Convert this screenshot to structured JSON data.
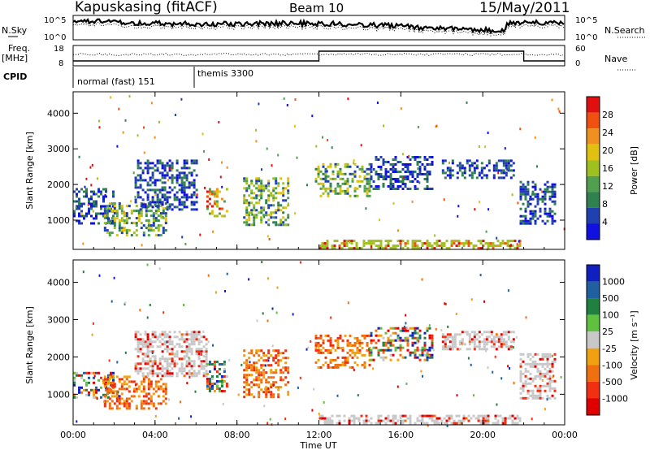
{
  "header": {
    "station": "Kapuskasing (fitACF)",
    "beam": "Beam 10",
    "date": "15/May/2011"
  },
  "noise_panel": {
    "left_label": "N.Sky",
    "right_label": "N.Search",
    "left_ticks": [
      "10^5",
      "10^0"
    ],
    "right_ticks": [
      "10^5",
      "10^0"
    ]
  },
  "freq_panel": {
    "left_label": "Freq.",
    "left_units": "[MHz]",
    "right_label": "Nave",
    "left_ticks": [
      "18",
      "8"
    ],
    "right_ticks": [
      "60",
      "0"
    ]
  },
  "cpid": {
    "label": "CPID",
    "modes": [
      {
        "name": "normal (fast) 151",
        "start_hour": 0
      },
      {
        "name": "themis 3300",
        "start_hour": 6
      }
    ]
  },
  "colors": {
    "power": [
      "#1010e0",
      "#2040b0",
      "#308050",
      "#50a050",
      "#a0c020",
      "#e0c010",
      "#f09020",
      "#f05010",
      "#e01010"
    ],
    "velocity": [
      "#1020c0",
      "#2060a0",
      "#208040",
      "#60c040",
      "#c8c8c8",
      "#f0a010",
      "#f07010",
      "#f03010",
      "#e00000"
    ]
  },
  "chart_data": [
    {
      "type": "heatmap",
      "title": "",
      "ylabel": "Slant Range [km]",
      "xlabel": "",
      "x_tick_labels": [
        "00:00",
        "04:00",
        "08:00",
        "12:00",
        "16:00",
        "20:00",
        "00:00"
      ],
      "y_tick_labels": [
        "1000",
        "2000",
        "3000",
        "4000"
      ],
      "xlim_hours": [
        0,
        24
      ],
      "ylim_km": [
        180,
        4600
      ],
      "colorbar": {
        "label": "Power [dB]",
        "tick_labels": [
          "28",
          "24",
          "20",
          "16",
          "12",
          "8",
          "4"
        ],
        "range": [
          0,
          30
        ]
      },
      "echo_regions": [
        {
          "start_hour": 0.0,
          "end_hour": 2.0,
          "range_low_km": 900,
          "range_high_km": 1900,
          "level": "low"
        },
        {
          "start_hour": 1.5,
          "end_hour": 4.5,
          "range_low_km": 600,
          "range_high_km": 1500,
          "level": "mid"
        },
        {
          "start_hour": 3.0,
          "end_hour": 6.0,
          "range_low_km": 1300,
          "range_high_km": 2700,
          "level": "low"
        },
        {
          "start_hour": 6.5,
          "end_hour": 7.5,
          "range_low_km": 1100,
          "range_high_km": 1900,
          "level": "high"
        },
        {
          "start_hour": 8.3,
          "end_hour": 10.5,
          "range_low_km": 900,
          "range_high_km": 2200,
          "level": "mid"
        },
        {
          "start_hour": 11.8,
          "end_hour": 14.5,
          "range_low_km": 1700,
          "range_high_km": 2600,
          "level": "mid"
        },
        {
          "start_hour": 14.5,
          "end_hour": 17.5,
          "range_low_km": 1900,
          "range_high_km": 2800,
          "level": "low"
        },
        {
          "start_hour": 18.0,
          "end_hour": 21.5,
          "range_low_km": 2200,
          "range_high_km": 2700,
          "level": "low"
        },
        {
          "start_hour": 21.8,
          "end_hour": 23.5,
          "range_low_km": 900,
          "range_high_km": 2100,
          "level": "low"
        },
        {
          "start_hour": 12.0,
          "end_hour": 21.8,
          "range_low_km": 200,
          "range_high_km": 450,
          "level": "ground"
        }
      ]
    },
    {
      "type": "heatmap",
      "title": "",
      "ylabel": "Slant Range [km]",
      "xlabel": "Time UT",
      "x_tick_labels": [
        "00:00",
        "04:00",
        "08:00",
        "12:00",
        "16:00",
        "20:00",
        "00:00"
      ],
      "y_tick_labels": [
        "1000",
        "2000",
        "3000",
        "4000"
      ],
      "xlim_hours": [
        0,
        24
      ],
      "ylim_km": [
        180,
        4600
      ],
      "colorbar": {
        "label": "Velocity [m s⁻¹]",
        "tick_labels": [
          "1000",
          "500",
          "100",
          "25",
          "-25",
          "-100",
          "-500",
          "-1000"
        ],
        "range": [
          -1000,
          1000
        ]
      },
      "echo_regions": [
        {
          "start_hour": 0.0,
          "end_hour": 2.0,
          "range_low_km": 900,
          "range_high_km": 1600,
          "level": "mixed"
        },
        {
          "start_hour": 1.5,
          "end_hour": 4.5,
          "range_low_km": 600,
          "range_high_km": 1500,
          "level": "away"
        },
        {
          "start_hour": 3.0,
          "end_hour": 6.5,
          "range_low_km": 1500,
          "range_high_km": 2700,
          "level": "ground"
        },
        {
          "start_hour": 6.5,
          "end_hour": 7.5,
          "range_low_km": 1100,
          "range_high_km": 1900,
          "level": "mixed"
        },
        {
          "start_hour": 8.3,
          "end_hour": 10.5,
          "range_low_km": 900,
          "range_high_km": 2200,
          "level": "away"
        },
        {
          "start_hour": 11.8,
          "end_hour": 14.5,
          "range_low_km": 1700,
          "range_high_km": 2600,
          "level": "away"
        },
        {
          "start_hour": 14.5,
          "end_hour": 17.5,
          "range_low_km": 1900,
          "range_high_km": 2800,
          "level": "mixed"
        },
        {
          "start_hour": 18.0,
          "end_hour": 21.5,
          "range_low_km": 2200,
          "range_high_km": 2700,
          "level": "ground"
        },
        {
          "start_hour": 21.8,
          "end_hour": 23.5,
          "range_low_km": 900,
          "range_high_km": 2100,
          "level": "ground"
        },
        {
          "start_hour": 12.0,
          "end_hour": 21.8,
          "range_low_km": 200,
          "range_high_km": 450,
          "level": "ground"
        }
      ]
    }
  ]
}
